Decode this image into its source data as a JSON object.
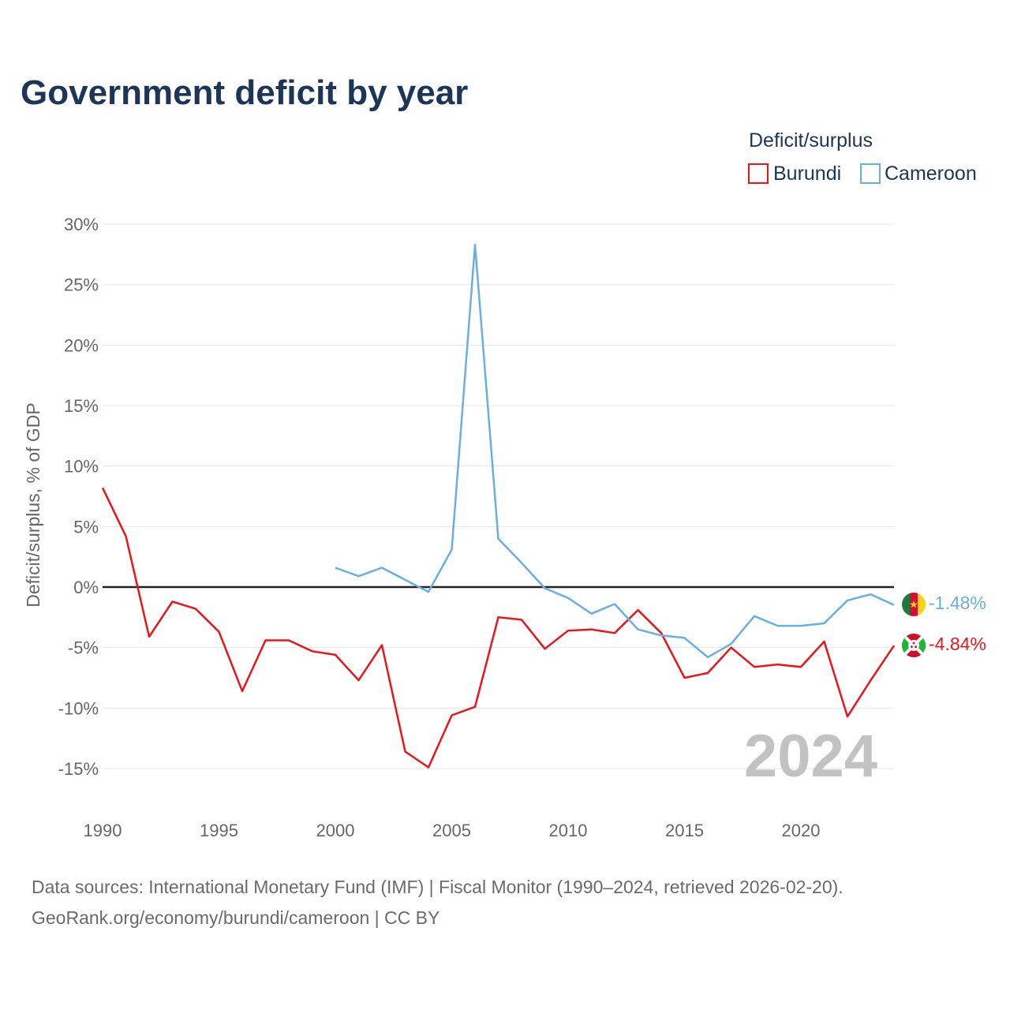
{
  "title": "Government deficit by year",
  "legend": {
    "title": "Deficit/surplus",
    "items": [
      {
        "name": "Burundi",
        "color": "#e8161b"
      },
      {
        "name": "Cameroon",
        "color": "#6aaee2"
      }
    ]
  },
  "year_watermark": "2024",
  "end_labels": {
    "cameroon": "-1.48%",
    "burundi": "-4.84%"
  },
  "source": {
    "line1": "Data sources: International Monetary Fund (IMF) | Fiscal Monitor (1990–2024, retrieved 2026-02-20).",
    "line2": "GeoRank.org/economy/burundi/cameroon | CC BY"
  },
  "chart_data": {
    "type": "line",
    "title": "Government deficit by year",
    "xlabel": "",
    "ylabel": "Deficit/surplus, % of GDP",
    "xlim": [
      1990,
      2024
    ],
    "ylim": [
      -15,
      30
    ],
    "x_ticks": [
      1990,
      1995,
      2000,
      2005,
      2010,
      2015,
      2020
    ],
    "y_ticks": [
      30,
      25,
      20,
      15,
      10,
      5,
      0,
      -5,
      -10,
      -15
    ],
    "y_tick_labels": [
      "30%",
      "25%",
      "20%",
      "15%",
      "10%",
      "5%",
      "0%",
      "-5%",
      "-10%",
      "-15%"
    ],
    "x_tick_labels": [
      "1990",
      "1995",
      "2000",
      "2005",
      "2010",
      "2015",
      "2020"
    ],
    "zero_line": true,
    "legend_position": "top-right",
    "series": [
      {
        "name": "Burundi",
        "color": "#e8161b",
        "x": [
          1990,
          1991,
          1992,
          1993,
          1994,
          1995,
          1996,
          1997,
          1998,
          1999,
          2000,
          2001,
          2002,
          2003,
          2004,
          2005,
          2006,
          2007,
          2008,
          2009,
          2010,
          2011,
          2012,
          2013,
          2014,
          2015,
          2016,
          2017,
          2018,
          2019,
          2020,
          2021,
          2022,
          2023,
          2024
        ],
        "values": [
          8.2,
          4.2,
          -4.1,
          -1.2,
          -1.8,
          -3.7,
          -8.6,
          -4.4,
          -4.4,
          -5.3,
          -5.6,
          -7.7,
          -4.8,
          -13.6,
          -14.9,
          -10.6,
          -9.9,
          -2.5,
          -2.7,
          -5.1,
          -3.6,
          -3.5,
          -3.8,
          -1.9,
          -3.8,
          -7.5,
          -7.1,
          -5.0,
          -6.6,
          -6.4,
          -6.6,
          -4.5,
          -10.7,
          -7.7,
          -4.84
        ]
      },
      {
        "name": "Cameroon",
        "color": "#6aaee2",
        "x": [
          2000,
          2001,
          2002,
          2003,
          2004,
          2005,
          2006,
          2007,
          2008,
          2009,
          2010,
          2011,
          2012,
          2013,
          2014,
          2015,
          2016,
          2017,
          2018,
          2019,
          2020,
          2021,
          2022,
          2023,
          2024
        ],
        "values": [
          1.6,
          0.9,
          1.6,
          0.6,
          -0.4,
          3.1,
          28.3,
          4.0,
          2.0,
          -0.1,
          -0.9,
          -2.2,
          -1.4,
          -3.5,
          -4.0,
          -4.2,
          -5.8,
          -4.7,
          -2.4,
          -3.2,
          -3.2,
          -3.0,
          -1.1,
          -0.6,
          -1.48
        ]
      }
    ]
  }
}
